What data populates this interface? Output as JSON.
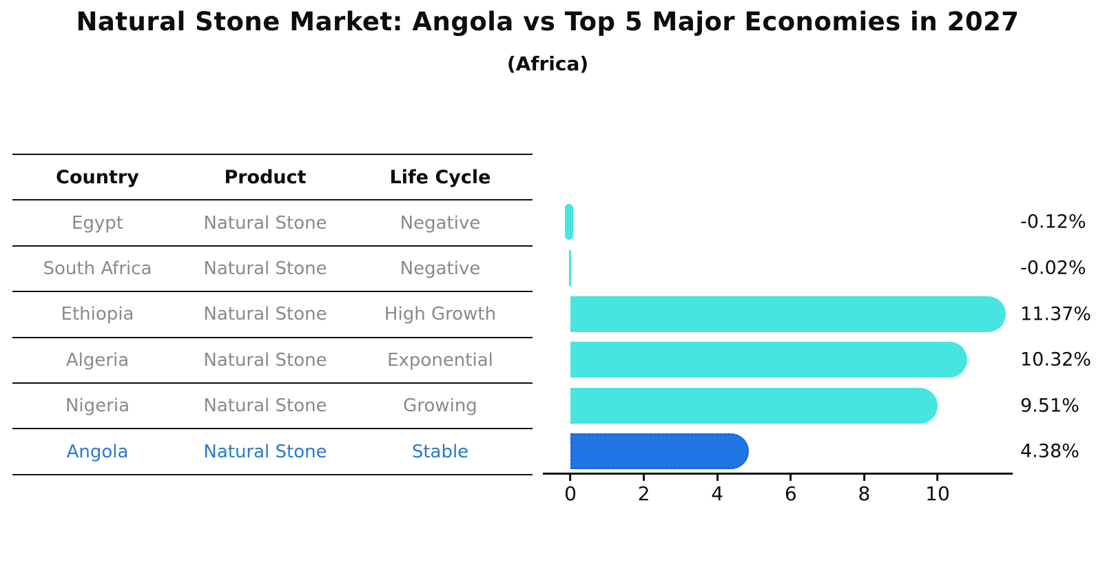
{
  "title": "Natural Stone Market: Angola vs Top 5 Major Economies in 2027",
  "subtitle": "(Africa)",
  "table": {
    "headers": [
      "Country",
      "Product",
      "Life Cycle"
    ],
    "rows": [
      {
        "country": "Egypt",
        "product": "Natural Stone",
        "life_cycle": "Negative",
        "highlight": false
      },
      {
        "country": "South Africa",
        "product": "Natural Stone",
        "life_cycle": "Negative",
        "highlight": false
      },
      {
        "country": "Ethiopia",
        "product": "Natural Stone",
        "life_cycle": "High Growth",
        "highlight": false
      },
      {
        "country": "Algeria",
        "product": "Natural Stone",
        "life_cycle": "Exponential",
        "highlight": false
      },
      {
        "country": "Nigeria",
        "product": "Natural Stone",
        "life_cycle": "Growing",
        "highlight": false
      },
      {
        "country": "Angola",
        "product": "Natural Stone",
        "life_cycle": "Stable",
        "highlight": true
      }
    ]
  },
  "chart_data": {
    "type": "bar",
    "orientation": "horizontal",
    "title": "Natural Stone Market: Angola vs Top 5 Major Economies in 2027 (Africa)",
    "categories": [
      "Egypt",
      "South Africa",
      "Ethiopia",
      "Algeria",
      "Nigeria",
      "Angola"
    ],
    "values": [
      -0.12,
      -0.02,
      11.37,
      10.32,
      9.51,
      4.38
    ],
    "value_labels": [
      "-0.12%",
      "-0.02%",
      "11.37%",
      "10.32%",
      "9.51%",
      "4.38%"
    ],
    "x_ticks": [
      0,
      2,
      4,
      6,
      8,
      10
    ],
    "xlim": [
      -0.75,
      12.2
    ],
    "grid": false,
    "legend": "none",
    "bar_color": "#46E5E0",
    "highlight_color": "#2176E5",
    "highlight_border_color": "#1b63d6",
    "highlight_index": 5,
    "highlight_text_color": "#2979d0"
  }
}
